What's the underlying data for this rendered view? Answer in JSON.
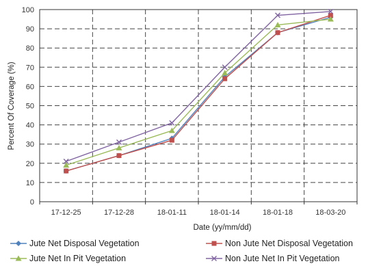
{
  "chart_data": {
    "type": "line",
    "categories": [
      "17-12-25",
      "17-12-28",
      "18-01-11",
      "18-01-14",
      "18-01-18",
      "18-03-20"
    ],
    "xlabel": "Date (yy/mm/dd)",
    "ylabel": "Percent Of Coverage (%)",
    "ylim": [
      0,
      100
    ],
    "yticks": [
      0,
      10,
      20,
      30,
      40,
      50,
      60,
      70,
      80,
      90,
      100
    ],
    "grid": true,
    "legend_position": "bottom",
    "series": [
      {
        "name": "Jute Net Disposal Vegetation",
        "color": "#4f81bd",
        "marker": "diamond",
        "values": [
          16,
          24,
          33,
          65,
          88,
          96
        ]
      },
      {
        "name": "Non Jute Net Disposal Vegetation",
        "color": "#c0504d",
        "marker": "square",
        "values": [
          16,
          24,
          32,
          64,
          88,
          97
        ]
      },
      {
        "name": "Jute Net In Pit Vegetation",
        "color": "#9bbb59",
        "marker": "triangle",
        "values": [
          19,
          28,
          37,
          67,
          92,
          95
        ]
      },
      {
        "name": "Non Jute Net In Pit Vegetation",
        "color": "#8064a2",
        "marker": "x",
        "values": [
          21,
          31,
          41,
          70,
          97,
          99
        ]
      }
    ]
  }
}
